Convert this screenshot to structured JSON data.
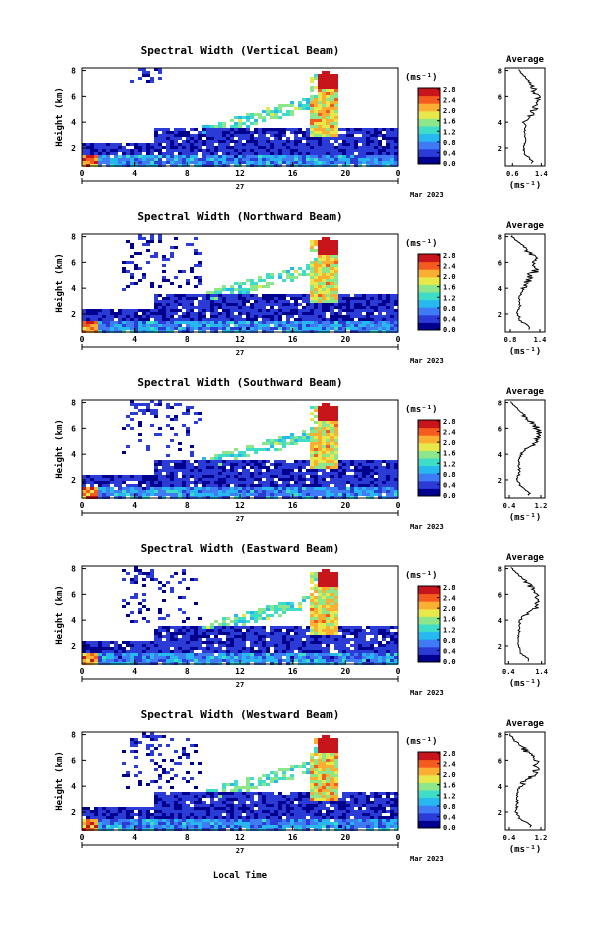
{
  "figure": {
    "xlabel_bottom": "Local Time",
    "ylabel": "Height (km)",
    "day_label": "27",
    "date_label": "Mar 2023",
    "units": "(ms⁻¹)",
    "avg_title": "Average",
    "avg_xlabel": "(ms⁻¹)",
    "time_ticks": [
      "0",
      "4",
      "8",
      "12",
      "16",
      "20",
      "0"
    ],
    "height_ticks": [
      "2",
      "4",
      "6",
      "8"
    ],
    "colorbar_ticks": [
      "0.0",
      "0.4",
      "0.8",
      "1.2",
      "1.6",
      "2.0",
      "2.4",
      "2.8"
    ],
    "colors": {
      "jet": [
        "#00008f",
        "#2b3bd6",
        "#3f7bf5",
        "#27b8f0",
        "#3fdcc8",
        "#8de68a",
        "#e9e84a",
        "#fbaf32",
        "#f55b1e",
        "#c8141b"
      ]
    }
  },
  "panels": [
    {
      "title": "Spectral Width (Vertical Beam)",
      "colorbar_tick_labels": [
        "0.0",
        "0.4",
        "0.8",
        "1.2",
        "1.6",
        "2.0",
        "2.4",
        "2.8"
      ],
      "avg_xticks": [
        "0.6",
        "1.4"
      ]
    },
    {
      "title": "Spectral Width (Northward Beam)",
      "colorbar_tick_labels": [
        "0.0",
        "0.4",
        "0.8",
        "1.2",
        "1.6",
        "2.0",
        "2.4",
        "2.8"
      ],
      "avg_xticks": [
        "0.8",
        "1.4"
      ]
    },
    {
      "title": "Spectral Width (Southward Beam)",
      "colorbar_tick_labels": [
        "0.0",
        "0.4",
        "0.8",
        "1.2",
        "1.6",
        "2.0",
        "2.4",
        "2.8"
      ],
      "avg_xticks": [
        "0.4",
        "1.2"
      ]
    },
    {
      "title": "Spectral Width (Eastward Beam)",
      "colorbar_tick_labels": [
        "0.0",
        "0.4",
        "0.8",
        "1.2",
        "1.6",
        "2.0",
        "2.4",
        "2.8"
      ],
      "avg_xticks": [
        "0.4",
        "1.4"
      ]
    },
    {
      "title": "Spectral Width (Westward Beam)",
      "colorbar_tick_labels": [
        "0.0",
        "0.4",
        "0.8",
        "1.2",
        "1.6",
        "2.0",
        "2.4",
        "2.8"
      ],
      "avg_xticks": [
        "0.4",
        "1.2"
      ]
    }
  ],
  "chart_data": [
    {
      "type": "heatmap",
      "title": "Spectral Width (Vertical Beam)",
      "xlabel": "",
      "ylabel": "Height (km)",
      "xlim": [
        0,
        24
      ],
      "ylim": [
        0.6,
        8.2
      ],
      "colorbar_range": [
        0.0,
        2.8
      ],
      "colorbar_unit": "(ms⁻¹)",
      "description_regions": [
        {
          "time": [
            0,
            24
          ],
          "height": [
            1.0,
            3.6
          ],
          "value_approx": 0.4
        },
        {
          "time": [
            18,
            19.5
          ],
          "height": [
            3.0,
            7.8
          ],
          "value_approx": 2.2
        },
        {
          "time": [
            0,
            1.2
          ],
          "height": [
            0.6,
            1.5
          ],
          "value_approx": 2.4
        }
      ],
      "average_profile": {
        "title": "Average",
        "xlabel": "(ms⁻¹)",
        "xlim": [
          0.4,
          1.5
        ],
        "ylim": [
          0.6,
          8.2
        ],
        "height": [
          1.0,
          1.5,
          2.0,
          2.5,
          3.0,
          3.5,
          4.0,
          4.5,
          5.0,
          5.5,
          6.0,
          6.5,
          7.0,
          7.5,
          8.0
        ],
        "value": [
          1.15,
          0.95,
          0.9,
          0.95,
          0.95,
          0.95,
          0.95,
          1.1,
          1.2,
          1.3,
          1.3,
          1.2,
          1.1,
          0.95,
          0.8
        ]
      }
    },
    {
      "type": "heatmap",
      "title": "Spectral Width (Northward Beam)",
      "xlabel": "",
      "ylabel": "Height (km)",
      "xlim": [
        0,
        24
      ],
      "ylim": [
        0.6,
        8.2
      ],
      "colorbar_range": [
        0.0,
        2.8
      ],
      "colorbar_unit": "(ms⁻¹)",
      "average_profile": {
        "title": "Average",
        "xlabel": "(ms⁻¹)",
        "xlim": [
          0.7,
          1.5
        ],
        "ylim": [
          0.6,
          8.2
        ],
        "height": [
          1.0,
          1.5,
          2.0,
          2.5,
          3.0,
          3.5,
          4.0,
          4.5,
          5.0,
          5.5,
          6.0,
          6.5,
          7.0,
          7.5,
          8.0
        ],
        "value": [
          1.2,
          1.0,
          0.95,
          1.0,
          1.0,
          1.0,
          1.1,
          1.15,
          1.2,
          1.35,
          1.3,
          1.25,
          1.15,
          1.0,
          0.85
        ]
      }
    },
    {
      "type": "heatmap",
      "title": "Spectral Width (Southward Beam)",
      "xlabel": "",
      "ylabel": "Height (km)",
      "xlim": [
        0,
        24
      ],
      "ylim": [
        0.6,
        8.2
      ],
      "colorbar_range": [
        0.0,
        2.8
      ],
      "colorbar_unit": "(ms⁻¹)",
      "average_profile": {
        "title": "Average",
        "xlabel": "(ms⁻¹)",
        "xlim": [
          0.3,
          1.3
        ],
        "ylim": [
          0.6,
          8.2
        ],
        "height": [
          1.0,
          1.5,
          2.0,
          2.5,
          3.0,
          3.5,
          4.0,
          4.5,
          5.0,
          5.5,
          6.0,
          6.5,
          7.0,
          7.5,
          8.0
        ],
        "value": [
          0.9,
          0.7,
          0.6,
          0.65,
          0.65,
          0.65,
          0.7,
          0.9,
          1.1,
          1.15,
          1.1,
          0.95,
          0.8,
          0.6,
          0.45
        ]
      }
    },
    {
      "type": "heatmap",
      "title": "Spectral Width (Eastward Beam)",
      "xlabel": "",
      "ylabel": "Height (km)",
      "xlim": [
        0,
        24
      ],
      "ylim": [
        0.6,
        8.2
      ],
      "colorbar_range": [
        0.0,
        2.8
      ],
      "colorbar_unit": "(ms⁻¹)",
      "average_profile": {
        "title": "Average",
        "xlabel": "(ms⁻¹)",
        "xlim": [
          0.3,
          1.5
        ],
        "ylim": [
          0.6,
          8.2
        ],
        "height": [
          1.0,
          1.5,
          2.0,
          2.5,
          3.0,
          3.5,
          4.0,
          4.5,
          5.0,
          5.5,
          6.0,
          6.5,
          7.0,
          7.5,
          8.0
        ],
        "value": [
          1.0,
          0.75,
          0.7,
          0.7,
          0.72,
          0.72,
          0.75,
          1.0,
          1.25,
          1.3,
          1.25,
          1.1,
          0.95,
          0.7,
          0.5
        ]
      }
    },
    {
      "type": "heatmap",
      "title": "Spectral Width (Westward Beam)",
      "xlabel": "Local Time",
      "ylabel": "Height (km)",
      "xlim": [
        0,
        24
      ],
      "ylim": [
        0.6,
        8.2
      ],
      "colorbar_range": [
        0.0,
        2.8
      ],
      "colorbar_unit": "(ms⁻¹)",
      "average_profile": {
        "title": "Average",
        "xlabel": "(ms⁻¹)",
        "xlim": [
          0.3,
          1.3
        ],
        "ylim": [
          0.6,
          8.2
        ],
        "height": [
          1.0,
          1.5,
          2.0,
          2.5,
          3.0,
          3.5,
          4.0,
          4.5,
          5.0,
          5.5,
          6.0,
          6.5,
          7.0,
          7.5,
          8.0
        ],
        "value": [
          0.95,
          0.65,
          0.58,
          0.6,
          0.6,
          0.6,
          0.65,
          0.85,
          1.05,
          1.1,
          1.05,
          0.9,
          0.75,
          0.55,
          0.42
        ]
      }
    }
  ]
}
